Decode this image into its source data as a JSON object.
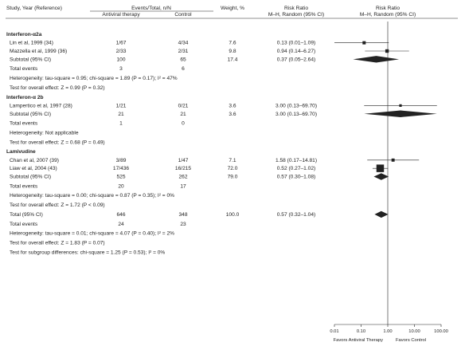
{
  "chart_data": {
    "type": "forest",
    "headers": {
      "study": "Study, Year (Reference)",
      "events_total": "Events/Total, n/N",
      "antiviral": "Antiviral therapy",
      "control": "Control",
      "weight": "Weight, %",
      "rr_top": "Risk Ratio",
      "rr_sub": "M–H, Random (95% CI)",
      "plot_top": "Risk Ratio",
      "plot_sub": "M–H, Random (95% CI)"
    },
    "x_axis": {
      "scale": "log",
      "ticks": [
        0.01,
        0.1,
        1,
        10,
        100
      ],
      "tick_labels": [
        "0.01",
        "0.10",
        "1.00",
        "10.00",
        "100.00"
      ],
      "xlim": [
        0.01,
        100
      ],
      "left_label": "Favors Antiviral Therapy",
      "right_label": "Favors Control"
    },
    "groups": [
      {
        "name": "Interferon-α2a",
        "studies": [
          {
            "label": "Lin et al, 1999 (34)",
            "antiviral": "1/67",
            "control": "4/34",
            "weight": "7.6",
            "rr_text": "0.13 (0.01–1.09)",
            "rr": 0.13,
            "lo": 0.01,
            "hi": 1.09
          },
          {
            "label": "Mazzella et al, 1999 (36)",
            "antiviral": "2/33",
            "control": "2/31",
            "weight": "9.8",
            "rr_text": "0.94 (0.14–6.27)",
            "rr": 0.94,
            "lo": 0.14,
            "hi": 6.27
          }
        ],
        "subtotal": {
          "label": "Subtotal (95% CI)",
          "antiviral": "100",
          "control": "65",
          "weight": "17.4",
          "rr_text": "0.37 (0.05–2.64)",
          "rr": 0.37,
          "lo": 0.05,
          "hi": 2.64
        },
        "total_events": {
          "label": "Total events",
          "antiviral": "3",
          "control": "6"
        },
        "heterogeneity": "Heterogeneity: tau-square = 0.95; chi-square = 1.89 (P = 0.17); I² = 47%",
        "overall": "Test for overall effect: Z = 0.99 (P = 0.32)"
      },
      {
        "name": "Interferon-α 2b",
        "studies": [
          {
            "label": "Lampertico et al, 1997 (28)",
            "antiviral": "1/21",
            "control": "0/21",
            "weight": "3.6",
            "rr_text": "3.00 (0.13–69.70)",
            "rr": 3.0,
            "lo": 0.13,
            "hi": 69.7
          }
        ],
        "subtotal": {
          "label": "Subtotal (95% CI)",
          "antiviral": "21",
          "control": "21",
          "weight": "3.6",
          "rr_text": "3.00 (0.13–69.70)",
          "rr": 3.0,
          "lo": 0.13,
          "hi": 69.7
        },
        "total_events": {
          "label": "Total events",
          "antiviral": "1",
          "control": "0"
        },
        "heterogeneity": "Heterogeneity: Not applicable",
        "overall": "Test for overall effect: Z = 0.68 (P = 0.49)"
      },
      {
        "name": "Lamivudine",
        "studies": [
          {
            "label": "Chan et al, 2007 (39)",
            "antiviral": "3/89",
            "control": "1/47",
            "weight": "7.1",
            "rr_text": "1.58 (0.17–14.81)",
            "rr": 1.58,
            "lo": 0.17,
            "hi": 14.81
          },
          {
            "label": "Liaw et al, 2004 (43)",
            "antiviral": "17/436",
            "control": "16/215",
            "weight": "72.0",
            "rr_text": "0.52 (0.27–1.02)",
            "rr": 0.52,
            "lo": 0.27,
            "hi": 1.02
          }
        ],
        "subtotal": {
          "label": "Subtotal (95% CI)",
          "antiviral": "525",
          "control": "262",
          "weight": "79.0",
          "rr_text": "0.57 (0.30–1.08)",
          "rr": 0.57,
          "lo": 0.3,
          "hi": 1.08
        },
        "total_events": {
          "label": "Total events",
          "antiviral": "20",
          "control": "17"
        },
        "heterogeneity": "Heterogeneity: tau-square = 0.00; chi-square = 0.87 (P = 0.35); I² = 0%",
        "overall": "Test for overall effect: Z = 1.72 (P < 0.09)"
      }
    ],
    "total": {
      "label": "Total (95% CI)",
      "antiviral": "646",
      "control": "348",
      "weight": "100.0",
      "rr_text": "0.57 (0.32–1.04)",
      "rr": 0.57,
      "lo": 0.32,
      "hi": 1.04
    },
    "total_events": {
      "label": "Total events",
      "antiviral": "24",
      "control": "23"
    },
    "heterogeneity": "Heterogeneity: tau-square = 0.01; chi-square = 4.07 (P = 0.40); I² = 2%",
    "overall": "Test for overall effect: Z = 1.83 (P = 0.07)",
    "subgroup": "Test for subgroup differences: chi-square = 1.25 (P = 0.53); I² = 0%"
  }
}
